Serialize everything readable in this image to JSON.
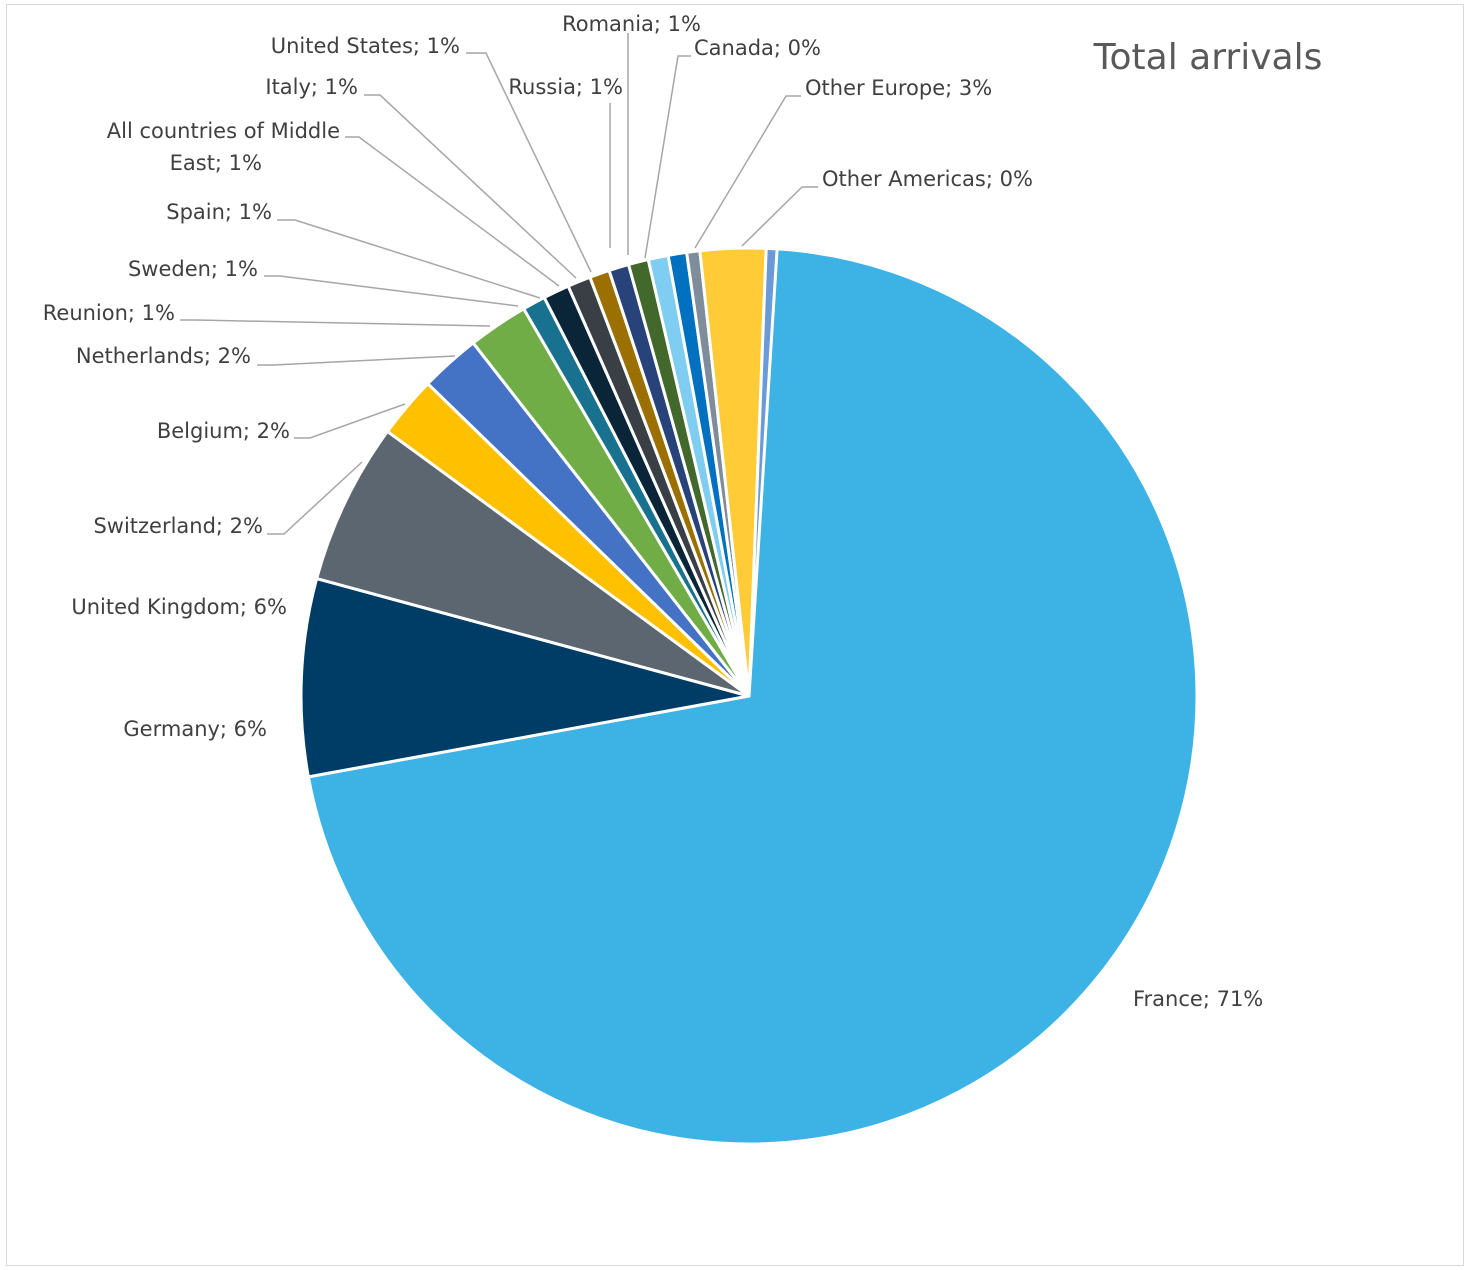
{
  "chart_data": {
    "type": "pie",
    "title": "Total  arrivals",
    "slices": [
      {
        "label": "France",
        "value": 71,
        "label_text": "France; 71%",
        "color": "#3cb2e5"
      },
      {
        "label": "Germany",
        "value": 6,
        "label_text": "Germany; 6%",
        "color": "#003d66"
      },
      {
        "label": "United Kingdom",
        "value": 6,
        "label_text": "United Kingdom; 6%",
        "color": "#5b6670"
      },
      {
        "label": "Switzerland",
        "value": 2,
        "label_text": "Switzerland; 2%",
        "color": "#ffc000"
      },
      {
        "label": "Belgium",
        "value": 2,
        "label_text": "Belgium; 2%",
        "color": "#4472c4"
      },
      {
        "label": "Netherlands",
        "value": 2,
        "label_text": "Netherlands; 2%",
        "color": "#70ad47"
      },
      {
        "label": "Reunion",
        "value": 1,
        "label_text": "Reunion; 1%",
        "color": "#17718f"
      },
      {
        "label": "Sweden",
        "value": 1,
        "label_text": "Sweden; 1%",
        "color": "#0a2538"
      },
      {
        "label": "Spain",
        "value": 1,
        "label_text": "Spain; 1%",
        "color": "#3a3f45"
      },
      {
        "label": "All countries of Middle East",
        "value": 1,
        "label_text": "All countries of Middle East; 1%",
        "label_lines": [
          "All countries of Middle",
          "East; 1%"
        ],
        "color": "#9c7000"
      },
      {
        "label": "Italy",
        "value": 1,
        "label_text": "Italy; 1%",
        "color": "#27437a"
      },
      {
        "label": "United States",
        "value": 1,
        "label_text": "United States; 1%",
        "color": "#43682b"
      },
      {
        "label": "Russia",
        "value": 1,
        "label_text": "Russia; 1%",
        "color": "#7fcdf0"
      },
      {
        "label": "Romania",
        "value": 1,
        "label_text": "Romania; 1%",
        "color": "#0070c0"
      },
      {
        "label": "Canada",
        "value": 0,
        "label_text": "Canada; 0%",
        "color": "#7f8c99"
      },
      {
        "label": "Other Europe",
        "value": 3,
        "label_text": "Other Europe; 3%",
        "color": "#ffcb36"
      },
      {
        "label": "Other Americas",
        "value": 0,
        "label_text": "Other Americas; 0%",
        "color": "#6b9ad8"
      }
    ],
    "legend": "none"
  }
}
